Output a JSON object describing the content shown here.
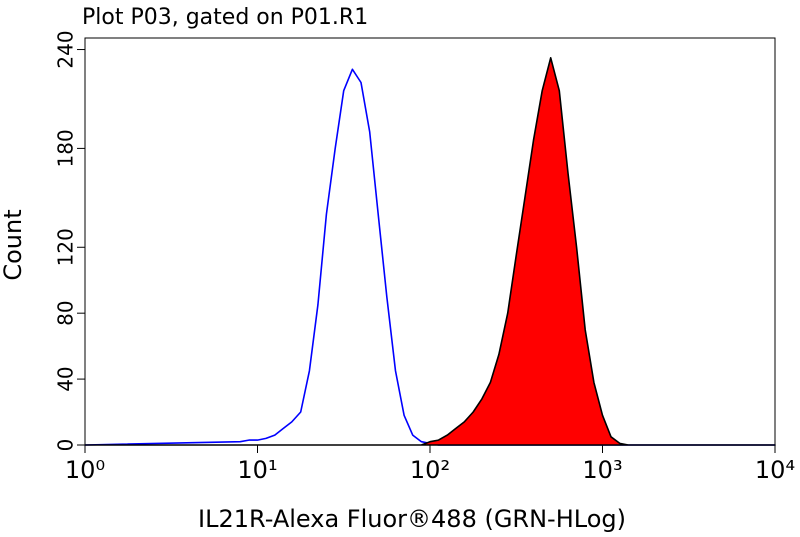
{
  "chart_data": {
    "type": "line",
    "title": "Plot P03, gated on P01.R1",
    "xlabel": "IL21R-Alexa Fluor®488 (GRN-HLog)",
    "ylabel": "Count",
    "xscale": "log",
    "x": [
      1,
      7.94,
      8.91,
      10,
      11.2,
      12.6,
      14.1,
      15.8,
      17.8,
      20,
      22.4,
      25.1,
      28.2,
      31.6,
      35.5,
      39.8,
      44.7,
      50.1,
      56.2,
      63.1,
      70.8,
      79.4,
      89.1,
      100,
      112,
      126,
      141,
      158,
      178,
      200,
      224,
      251,
      282,
      316,
      355,
      398,
      447,
      501,
      562,
      631,
      708,
      794,
      891,
      1000,
      1120,
      1260,
      1410,
      10000
    ],
    "series": [
      {
        "color": "#0000ff",
        "fill": false,
        "values": [
          0,
          2,
          3,
          3,
          4,
          6,
          10,
          14,
          20,
          45,
          85,
          140,
          180,
          215,
          228,
          220,
          190,
          140,
          90,
          45,
          18,
          6,
          2,
          1,
          0,
          0,
          0,
          0,
          0,
          0,
          0,
          0,
          0,
          0,
          0,
          0,
          0,
          0,
          0,
          0,
          0,
          0,
          0,
          0,
          0,
          0,
          0,
          0
        ]
      },
      {
        "color": "#ff0000",
        "edgecolor": "#000000",
        "fill": true,
        "values": [
          0,
          0,
          0,
          0,
          0,
          0,
          0,
          0,
          0,
          0,
          0,
          0,
          0,
          0,
          0,
          0,
          0,
          0,
          0,
          0,
          0,
          0,
          0,
          2,
          3,
          6,
          10,
          14,
          20,
          28,
          38,
          55,
          80,
          115,
          150,
          185,
          215,
          235,
          215,
          165,
          120,
          70,
          38,
          18,
          5,
          1,
          0,
          0
        ]
      }
    ],
    "xlim": [
      1,
      10000
    ],
    "xticks": [
      {
        "value": 1,
        "label": "10⁰"
      },
      {
        "value": 10,
        "label": "10¹"
      },
      {
        "value": 100,
        "label": "10²"
      },
      {
        "value": 1000,
        "label": "10³"
      },
      {
        "value": 10000,
        "label": "10⁴"
      }
    ],
    "ylim": [
      0,
      247
    ],
    "yticks": [
      0,
      40,
      80,
      120,
      180,
      240
    ]
  }
}
